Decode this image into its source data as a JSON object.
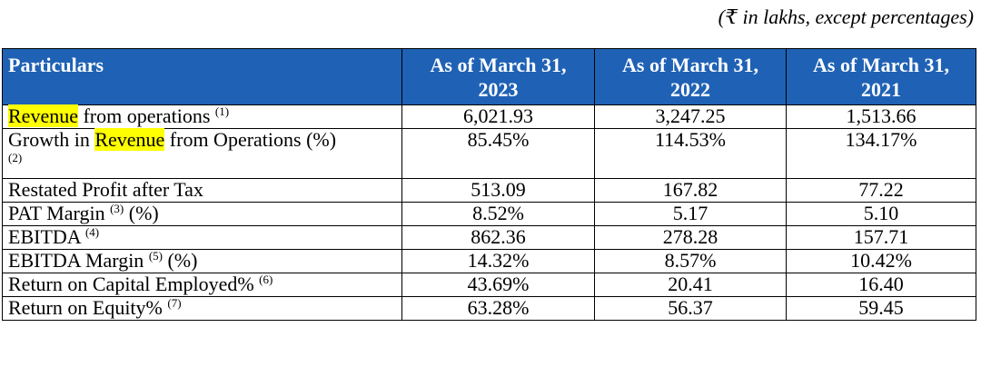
{
  "note": "(₹ in lakhs, except percentages)",
  "header": {
    "particulars": "Particulars",
    "col1": {
      "line1": "As of March 31,",
      "line2": "2023"
    },
    "col2": {
      "line1": "As of March 31,",
      "line2": "2022"
    },
    "col3": {
      "line1": "As of March 31,",
      "line2": "2021"
    }
  },
  "highlight_color": "#ffff00",
  "header_color": "#1f62b5",
  "rows": [
    {
      "label_pre": "",
      "label_hl": "Revenue",
      "label_post": " from operations ",
      "sup": "(1)",
      "v2023": "6,021.93",
      "v2022": "3,247.25",
      "v2021": "1,513.66"
    },
    {
      "label_pre": "Growth in ",
      "label_hl": "Revenue",
      "label_post": " from Operations (%)",
      "sup": "(2)",
      "v2023": "85.45%",
      "v2022": "114.53%",
      "v2021": "134.17%"
    },
    {
      "label_pre": "Restated Profit after Tax",
      "v2023": "513.09",
      "v2022": "167.82",
      "v2021": "77.22"
    },
    {
      "label_pre": "PAT Margin ",
      "sup": "(3)",
      "label_post": " (%)",
      "v2023": "8.52%",
      "v2022": "5.17",
      "v2021": "5.10"
    },
    {
      "label_pre": "EBITDA ",
      "sup": "(4)",
      "v2023": "862.36",
      "v2022": "278.28",
      "v2021": "157.71"
    },
    {
      "label_pre": "EBITDA Margin ",
      "sup": "(5)",
      "label_post": " (%)",
      "v2023": "14.32%",
      "v2022": "8.57%",
      "v2021": "10.42%"
    },
    {
      "label_pre": "Return on Capital Employed% ",
      "sup": "(6)",
      "v2023": "43.69%",
      "v2022": "20.41",
      "v2021": "16.40"
    },
    {
      "label_pre": "Return on Equity% ",
      "sup": "(7)",
      "v2023": "63.28%",
      "v2022": "56.37",
      "v2021": "59.45"
    }
  ]
}
